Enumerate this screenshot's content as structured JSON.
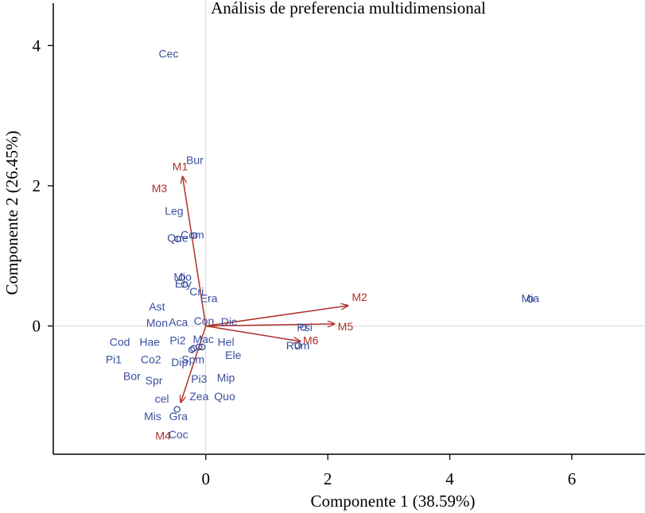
{
  "chart_data": {
    "type": "scatter",
    "title": "Análisis de preferencia multidimensional",
    "xlabel": "Componente 1 (38.59%)",
    "ylabel": "Componente 2 (26.45%)",
    "xlim": [
      -2.5,
      7.2
    ],
    "ylim": [
      -1.83,
      4.65
    ],
    "xticks": [
      "0",
      "2",
      "4",
      "6"
    ],
    "xtick_values": [
      0,
      2,
      4,
      6
    ],
    "yticks": [
      "0",
      "2",
      "4"
    ],
    "ytick_values": [
      0,
      2,
      4
    ],
    "grid": false,
    "colors": {
      "points": "#3a4f9e",
      "vectors": "#b0302a",
      "axes": "#000000"
    },
    "points": [
      {
        "label": "Cec",
        "x": -0.61,
        "y": 3.87
      },
      {
        "label": "Bur",
        "x": -0.18,
        "y": 2.35
      },
      {
        "label": "Leg",
        "x": -0.52,
        "y": 1.63
      },
      {
        "label": "Com",
        "x": -0.22,
        "y": 1.29
      },
      {
        "label": "Que",
        "x": -0.46,
        "y": 1.24
      },
      {
        "label": "Mio",
        "x": -0.38,
        "y": 0.69
      },
      {
        "label": "Ery",
        "x": -0.37,
        "y": 0.59
      },
      {
        "label": "Cri",
        "x": -0.15,
        "y": 0.48
      },
      {
        "label": "Era",
        "x": 0.05,
        "y": 0.38
      },
      {
        "label": "Ast",
        "x": -0.8,
        "y": 0.26
      },
      {
        "label": "Mon",
        "x": -0.8,
        "y": 0.03
      },
      {
        "label": "Aca",
        "x": -0.45,
        "y": 0.04
      },
      {
        "label": "Con",
        "x": -0.03,
        "y": 0.06
      },
      {
        "label": "Dic",
        "x": 0.38,
        "y": 0.05
      },
      {
        "label": "Psi",
        "x": 1.62,
        "y": -0.03
      },
      {
        "label": "Rum",
        "x": 1.51,
        "y": -0.29
      },
      {
        "label": "Mia",
        "x": 5.32,
        "y": 0.38
      },
      {
        "label": "Cod",
        "x": -1.41,
        "y": -0.24
      },
      {
        "label": "Hae",
        "x": -0.92,
        "y": -0.24
      },
      {
        "label": "Pi2",
        "x": -0.46,
        "y": -0.22
      },
      {
        "label": "Mac",
        "x": -0.04,
        "y": -0.2
      },
      {
        "label": "Hel",
        "x": 0.33,
        "y": -0.24
      },
      {
        "label": "Pi1",
        "x": -1.51,
        "y": -0.49
      },
      {
        "label": "Co2",
        "x": -0.9,
        "y": -0.49
      },
      {
        "label": "Dip",
        "x": -0.43,
        "y": -0.53
      },
      {
        "label": "Spm",
        "x": -0.21,
        "y": -0.49
      },
      {
        "label": "Ele",
        "x": 0.45,
        "y": -0.43
      },
      {
        "label": "Bor",
        "x": -1.21,
        "y": -0.73
      },
      {
        "label": "Spr",
        "x": -0.85,
        "y": -0.79
      },
      {
        "label": "Pi3",
        "x": -0.11,
        "y": -0.77
      },
      {
        "label": "Mip",
        "x": 0.33,
        "y": -0.75
      },
      {
        "label": "cel",
        "x": -0.72,
        "y": -1.05
      },
      {
        "label": "Zea",
        "x": -0.11,
        "y": -1.02
      },
      {
        "label": "Quo",
        "x": 0.31,
        "y": -1.02
      },
      {
        "label": "Mis",
        "x": -0.87,
        "y": -1.3
      },
      {
        "label": "Gra",
        "x": -0.45,
        "y": -1.3
      },
      {
        "label": "Coc",
        "x": -0.45,
        "y": -1.56
      }
    ],
    "unlabeled_points": [
      {
        "x": -0.19,
        "y": 1.29
      },
      {
        "x": -0.46,
        "y": 1.24
      },
      {
        "x": -0.39,
        "y": 0.69
      },
      {
        "x": -0.35,
        "y": 0.59
      },
      {
        "x": 1.6,
        "y": -0.02
      },
      {
        "x": 1.51,
        "y": -0.28
      },
      {
        "x": 5.32,
        "y": 0.38
      },
      {
        "x": -0.23,
        "y": -0.34
      },
      {
        "x": -0.2,
        "y": -0.32
      },
      {
        "x": -0.11,
        "y": -0.3
      },
      {
        "x": -0.06,
        "y": -0.3
      },
      {
        "x": -0.47,
        "y": -1.19
      }
    ],
    "vectors": [
      {
        "label": "M1",
        "x": -0.38,
        "y": 2.13,
        "lx": -0.42,
        "ly": 2.26
      },
      {
        "label": "M3",
        "x": -0.38,
        "y": 2.13,
        "lx": -0.76,
        "ly": 1.95
      },
      {
        "label": "M2",
        "x": 2.33,
        "y": 0.29,
        "lx": 2.52,
        "ly": 0.4
      },
      {
        "label": "M5",
        "x": 2.11,
        "y": 0.03,
        "lx": 2.29,
        "ly": -0.02
      },
      {
        "label": "M6",
        "x": 1.55,
        "y": -0.22,
        "lx": 1.72,
        "ly": -0.22
      },
      {
        "label": "M4",
        "x": -0.41,
        "y": -1.09,
        "lx": -0.7,
        "ly": -1.58
      }
    ]
  }
}
